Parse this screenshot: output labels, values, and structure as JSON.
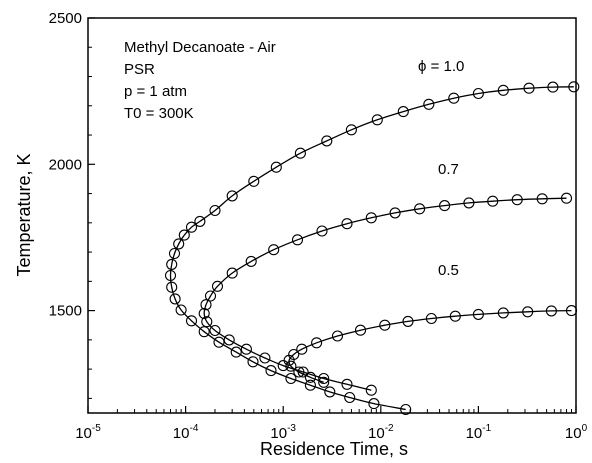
{
  "chart_data": {
    "type": "scatter",
    "title": "",
    "xlabel": "Residence Time, s",
    "ylabel": "Temperature, K",
    "x_scale": "log",
    "xlim": [
      1e-05,
      1
    ],
    "ylim": [
      1150,
      2500
    ],
    "x_ticks": [
      {
        "value": 1e-05,
        "base": "10",
        "exp": "-5"
      },
      {
        "value": 0.0001,
        "base": "10",
        "exp": "-4"
      },
      {
        "value": 0.001,
        "base": "10",
        "exp": "-3"
      },
      {
        "value": 0.01,
        "base": "10",
        "exp": "-2"
      },
      {
        "value": 0.1,
        "base": "10",
        "exp": "-1"
      },
      {
        "value": 1,
        "base": "10",
        "exp": "0"
      }
    ],
    "y_ticks": [
      1500,
      2000,
      2500
    ],
    "grid": false,
    "annotations": {
      "conditions": [
        "Methyl Decanoate - Air",
        "PSR",
        "p = 1 atm",
        "T0 = 300K"
      ],
      "phi_1_0": "ϕ = 1.0",
      "phi_0_7": "0.7",
      "phi_0_5": "0.5"
    },
    "series": [
      {
        "label": "ϕ = 1.0",
        "marker": "open-circle",
        "points": [
          [
            0.018,
            1162
          ],
          [
            0.0085,
            1182
          ],
          [
            0.0048,
            1203
          ],
          [
            0.003,
            1222
          ],
          [
            0.0019,
            1245
          ],
          [
            0.0012,
            1268
          ],
          [
            0.00075,
            1295
          ],
          [
            0.00049,
            1325
          ],
          [
            0.00033,
            1358
          ],
          [
            0.00022,
            1392
          ],
          [
            0.000155,
            1428
          ],
          [
            0.000115,
            1465
          ],
          [
            9e-05,
            1502
          ],
          [
            7.8e-05,
            1540
          ],
          [
            7.2e-05,
            1580
          ],
          [
            7e-05,
            1620
          ],
          [
            7.2e-05,
            1658
          ],
          [
            7.7e-05,
            1695
          ],
          [
            8.5e-05,
            1728
          ],
          [
            9.7e-05,
            1758
          ],
          [
            0.000115,
            1785
          ],
          [
            0.00014,
            1805
          ],
          [
            0.0002,
            1842
          ],
          [
            0.0003,
            1892
          ],
          [
            0.0005,
            1942
          ],
          [
            0.00085,
            1990
          ],
          [
            0.0015,
            2038
          ],
          [
            0.0028,
            2080
          ],
          [
            0.005,
            2118
          ],
          [
            0.0092,
            2152
          ],
          [
            0.017,
            2180
          ],
          [
            0.031,
            2205
          ],
          [
            0.056,
            2226
          ],
          [
            0.1,
            2242
          ],
          [
            0.18,
            2253
          ],
          [
            0.33,
            2260
          ],
          [
            0.58,
            2264
          ],
          [
            0.95,
            2265
          ]
        ]
      },
      {
        "label": "0.7",
        "marker": "open-circle",
        "points": [
          [
            0.008,
            1228
          ],
          [
            0.0045,
            1248
          ],
          [
            0.0026,
            1268
          ],
          [
            0.0016,
            1290
          ],
          [
            0.001,
            1312
          ],
          [
            0.00065,
            1338
          ],
          [
            0.00042,
            1368
          ],
          [
            0.00028,
            1400
          ],
          [
            0.0002,
            1432
          ],
          [
            0.000165,
            1462
          ],
          [
            0.000155,
            1490
          ],
          [
            0.000162,
            1520
          ],
          [
            0.00018,
            1550
          ],
          [
            0.000212,
            1583
          ],
          [
            0.0003,
            1628
          ],
          [
            0.00047,
            1668
          ],
          [
            0.0008,
            1708
          ],
          [
            0.0014,
            1742
          ],
          [
            0.0025,
            1772
          ],
          [
            0.0045,
            1797
          ],
          [
            0.008,
            1817
          ],
          [
            0.014,
            1834
          ],
          [
            0.025,
            1848
          ],
          [
            0.045,
            1859
          ],
          [
            0.08,
            1868
          ],
          [
            0.14,
            1874
          ],
          [
            0.25,
            1879
          ],
          [
            0.45,
            1882
          ],
          [
            0.8,
            1884
          ]
        ]
      },
      {
        "label": "0.5",
        "marker": "open-circle",
        "points": [
          [
            0.0026,
            1255
          ],
          [
            0.0019,
            1272
          ],
          [
            0.00145,
            1290
          ],
          [
            0.0012,
            1310
          ],
          [
            0.00115,
            1330
          ],
          [
            0.00128,
            1350
          ],
          [
            0.00155,
            1368
          ],
          [
            0.0022,
            1390
          ],
          [
            0.0036,
            1413
          ],
          [
            0.0062,
            1433
          ],
          [
            0.011,
            1450
          ],
          [
            0.019,
            1463
          ],
          [
            0.033,
            1473
          ],
          [
            0.058,
            1481
          ],
          [
            0.1,
            1487
          ],
          [
            0.18,
            1492
          ],
          [
            0.32,
            1496
          ],
          [
            0.56,
            1499
          ],
          [
            0.9,
            1500
          ]
        ]
      }
    ]
  }
}
